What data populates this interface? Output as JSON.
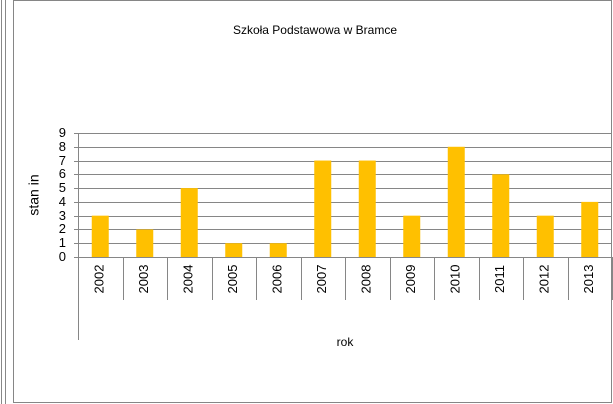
{
  "chart_data": {
    "type": "bar",
    "title": "Szkoła Podstawowa w Bramce",
    "x_label": "rok",
    "y_label": "stan in",
    "categories": [
      "2002",
      "2003",
      "2004",
      "2005",
      "2006",
      "2007",
      "2008",
      "2009",
      "2010",
      "2011",
      "2012",
      "2013"
    ],
    "values": [
      3,
      2,
      5,
      1,
      1,
      7,
      7,
      3,
      8,
      6,
      3,
      4
    ],
    "color": "#ffc000",
    "ylim": [
      0,
      9
    ],
    "yticks": [
      0,
      1,
      2,
      3,
      4,
      5,
      6,
      7,
      8,
      9
    ],
    "grid": true
  }
}
